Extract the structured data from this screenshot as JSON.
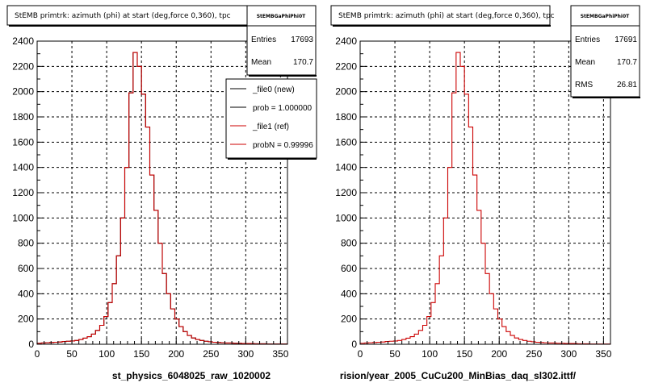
{
  "footer_text": "",
  "chart_data": [
    {
      "type": "bar",
      "title": "StEMB primtrk: azimuth (phi) at start (deg,force 0,360), tpc",
      "xlabel": "st_physics_6048025_raw_1020002",
      "xlim": [
        0,
        360
      ],
      "ylim": [
        0,
        2400
      ],
      "xticks": [
        0,
        50,
        100,
        150,
        200,
        250,
        300,
        350
      ],
      "yticks": [
        0,
        200,
        400,
        600,
        800,
        1000,
        1200,
        1400,
        1600,
        1800,
        2000,
        2200,
        2400
      ],
      "grid": true,
      "bin_width": 6,
      "stats": {
        "name": "StEMBGaPhiPhi0T",
        "entries_label": "Entries",
        "entries": "17693",
        "mean_label": "Mean",
        "mean": "170.7"
      },
      "legend": {
        "position": "top-right",
        "entries": [
          "_file0 (new)",
          "prob = 1.000000",
          "_file1 (ref)",
          "probN = 0.99996"
        ]
      },
      "series": [
        {
          "name": "_file0 (new)",
          "color": "#000000",
          "values": [
            8,
            10,
            12,
            14,
            16,
            18,
            22,
            24,
            26,
            30,
            38,
            48,
            60,
            80,
            110,
            150,
            220,
            330,
            480,
            700,
            1000,
            1400,
            1990,
            2310,
            2200,
            1980,
            1720,
            1340,
            1060,
            800,
            560,
            400,
            280,
            200,
            140,
            100,
            70,
            50,
            38,
            30,
            24,
            20,
            16,
            14,
            12,
            10,
            10,
            8,
            8,
            6,
            6,
            6,
            4,
            4,
            4,
            2,
            2,
            2,
            2,
            2
          ]
        },
        {
          "name": "_file1 (ref)",
          "color": "#cc0000",
          "values": [
            8,
            10,
            12,
            14,
            16,
            18,
            22,
            24,
            26,
            30,
            38,
            48,
            60,
            80,
            110,
            150,
            220,
            330,
            480,
            700,
            1000,
            1400,
            1990,
            2310,
            2200,
            1980,
            1720,
            1340,
            1060,
            800,
            560,
            400,
            280,
            200,
            140,
            100,
            70,
            50,
            38,
            30,
            24,
            20,
            16,
            14,
            12,
            10,
            10,
            8,
            8,
            6,
            6,
            6,
            4,
            4,
            4,
            2,
            2,
            2,
            2,
            2
          ]
        }
      ]
    },
    {
      "type": "bar",
      "title": "StEMB primtrk: azimuth (phi) at start (deg,force 0,360), tpc",
      "xlabel": "rision/year_2005_CuCu200_MinBias_daq_sl302.ittf/",
      "xlim": [
        0,
        360
      ],
      "ylim": [
        0,
        2400
      ],
      "xticks": [
        0,
        50,
        100,
        150,
        200,
        250,
        300,
        350
      ],
      "yticks": [
        0,
        200,
        400,
        600,
        800,
        1000,
        1200,
        1400,
        1600,
        1800,
        2000,
        2200,
        2400
      ],
      "grid": true,
      "bin_width": 6,
      "stats": {
        "name": "StEMBGaPhiPhi0T",
        "entries_label": "Entries",
        "entries": "17691",
        "mean_label": "Mean",
        "mean": "170.7",
        "rms_label": "RMS",
        "rms": "26.81"
      },
      "series": [
        {
          "name": "",
          "color": "#cc0000",
          "values": [
            8,
            10,
            12,
            14,
            16,
            18,
            22,
            24,
            26,
            30,
            38,
            48,
            60,
            80,
            110,
            150,
            220,
            330,
            480,
            700,
            1000,
            1400,
            1990,
            2310,
            2200,
            1980,
            1720,
            1340,
            1060,
            800,
            560,
            400,
            280,
            200,
            140,
            100,
            70,
            50,
            38,
            30,
            24,
            20,
            16,
            14,
            12,
            10,
            10,
            8,
            8,
            6,
            6,
            6,
            4,
            4,
            4,
            2,
            2,
            2,
            2,
            2
          ]
        }
      ]
    }
  ]
}
